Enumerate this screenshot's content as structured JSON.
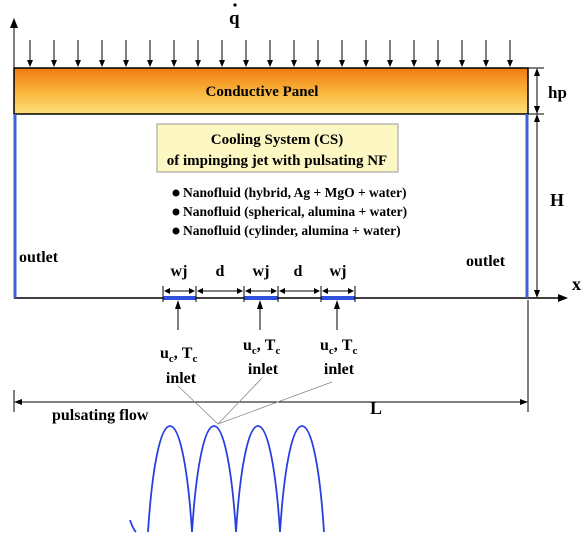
{
  "heat_flux_label": "q",
  "panel_label": "Conductive Panel",
  "panel_thickness_label": "hp",
  "cavity_height_label": "H",
  "system_box": {
    "line1": "Cooling System (CS)",
    "line2": "of impinging jet with pulsating NF"
  },
  "nanofluids": [
    "Nanofluid (hybrid, Ag + MgO + water)",
    "Nanofluid (spherical, alumina + water)",
    "Nanofluid (cylinder, alumina + water)"
  ],
  "outlet_label": "outlet",
  "x_axis_label": "x",
  "jet_width_label": "wj",
  "jet_spacing_label": "d",
  "inlet_condition": {
    "u": "u",
    "t": "T",
    "subscript": "c",
    "separator": ","
  },
  "inlet_label": "inlet",
  "length_label": "L",
  "pulsating_label": "pulsating flow",
  "colors": {
    "panel_top": "#f07a10",
    "panel_bottom": "#fde07a",
    "outlet_wall": "#4060d8",
    "inlet_jet": "#3050e0",
    "wave": "#2840e0",
    "system_box_fill": "#fdf7c4"
  }
}
